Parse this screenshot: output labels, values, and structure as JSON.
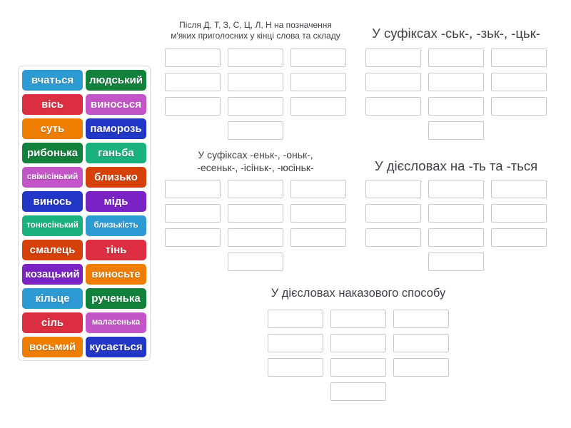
{
  "palette": {
    "blue": "#2d9ad4",
    "green": "#12813c",
    "crimson": "#dc2e41",
    "orchid": "#c455c9",
    "orange": "#ef7d00",
    "royal": "#2337c6",
    "emerald": "#1ab27c",
    "vermillion": "#d64009",
    "violet": "#7a22c4"
  },
  "word_bank": {
    "tiles": [
      {
        "label": "вчаться",
        "color": "blue"
      },
      {
        "label": "людський",
        "color": "green"
      },
      {
        "label": "вісь",
        "color": "crimson"
      },
      {
        "label": "виносься",
        "color": "orchid"
      },
      {
        "label": "суть",
        "color": "orange"
      },
      {
        "label": "паморозь",
        "color": "royal"
      },
      {
        "label": "рибонька",
        "color": "green"
      },
      {
        "label": "ганьба",
        "color": "emerald"
      },
      {
        "label": "свіжісінький",
        "color": "orchid"
      },
      {
        "label": "близько",
        "color": "vermillion"
      },
      {
        "label": "винось",
        "color": "royal"
      },
      {
        "label": "мідь",
        "color": "violet"
      },
      {
        "label": "тонюсінький",
        "color": "emerald"
      },
      {
        "label": "близькість",
        "color": "blue"
      },
      {
        "label": "смалець",
        "color": "vermillion"
      },
      {
        "label": "тінь",
        "color": "crimson"
      },
      {
        "label": "козацький",
        "color": "violet"
      },
      {
        "label": "виносьте",
        "color": "orange"
      },
      {
        "label": "кільце",
        "color": "blue"
      },
      {
        "label": "рученька",
        "color": "green"
      },
      {
        "label": "сіль",
        "color": "crimson"
      },
      {
        "label": "маласенька",
        "color": "orchid"
      },
      {
        "label": "восьмий",
        "color": "orange"
      },
      {
        "label": "кусається",
        "color": "royal"
      }
    ]
  },
  "categories": [
    {
      "title": "Після Д, Т, З, С, Ц, Л, Н на позначення\nм'яких приголосних у кінці слова та складу",
      "slot_count": 10
    },
    {
      "title": "У суфіксах -ськ-, -зьк-, -цьк-",
      "slot_count": 10
    },
    {
      "title": "У суфіксах -еньк-, -оньк-,\n-есеньк-, -ісіньк-, -юсіньк-",
      "slot_count": 10
    },
    {
      "title": "У дієсловах на -ть та -ться",
      "slot_count": 10
    },
    {
      "title": "У дієсловах наказового способу",
      "slot_count": 10
    }
  ]
}
